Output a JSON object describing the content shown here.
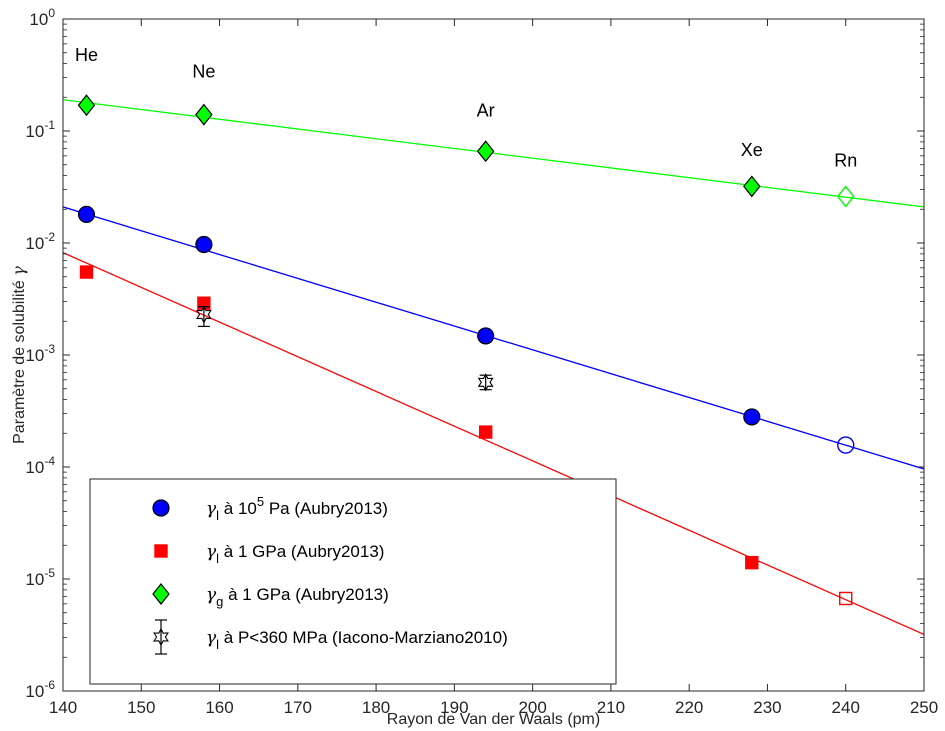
{
  "chart_data": {
    "type": "scatter",
    "x_axis": {
      "label": "Rayon de Van der Waals (pm)",
      "range": [
        140,
        250
      ],
      "ticks": [
        140,
        150,
        160,
        170,
        180,
        190,
        200,
        210,
        220,
        230,
        240,
        250
      ]
    },
    "y_axis": {
      "label": "Paramètre de solubilité γ",
      "scale": "log",
      "range": [
        1e-06,
        1
      ],
      "tick_labels": [
        {
          "base": "10",
          "exp": "-6"
        },
        {
          "base": "10",
          "exp": "-5"
        },
        {
          "base": "10",
          "exp": "-4"
        },
        {
          "base": "10",
          "exp": "-3"
        },
        {
          "base": "10",
          "exp": "-2"
        },
        {
          "base": "10",
          "exp": "-1"
        },
        {
          "base": "10",
          "exp": "0"
        }
      ]
    },
    "grid": false,
    "legend_position": "bottom-left",
    "element_labels": [
      {
        "text": "He",
        "x": 143,
        "y": 0.42
      },
      {
        "text": "Ne",
        "x": 158,
        "y": 0.3
      },
      {
        "text": "Ar",
        "x": 194,
        "y": 0.135
      },
      {
        "text": "Xe",
        "x": 228,
        "y": 0.06
      },
      {
        "text": "Rn",
        "x": 240,
        "y": 0.048
      }
    ],
    "series": [
      {
        "name": "γl à 10^5 Pa (Aubry2013)",
        "legend": {
          "sym": "γ",
          "sub": "l",
          "text": " à 10",
          "sup": "5",
          "rest": " Pa (Aubry2013)"
        },
        "marker": "circle",
        "color": "#0000ff",
        "points": [
          {
            "x": 143,
            "y": 0.018
          },
          {
            "x": 158,
            "y": 0.0097
          },
          {
            "x": 194,
            "y": 0.00148
          },
          {
            "x": 228,
            "y": 0.00028
          }
        ],
        "open_points": [
          {
            "x": 240,
            "y": 0.000157
          }
        ],
        "fit_line": {
          "x": [
            140,
            250
          ],
          "y": [
            0.021,
            9.6e-05
          ]
        }
      },
      {
        "name": "γl à 1 GPa (Aubry2013)",
        "legend": {
          "sym": "γ",
          "sub": "l",
          "text": " à 1 GPa (Aubry2013)",
          "sup": "",
          "rest": ""
        },
        "marker": "square",
        "color": "#ff0000",
        "points": [
          {
            "x": 143,
            "y": 0.0055
          },
          {
            "x": 158,
            "y": 0.0029
          },
          {
            "x": 194,
            "y": 0.000205
          },
          {
            "x": 228,
            "y": 1.4e-05
          }
        ],
        "open_points": [
          {
            "x": 240,
            "y": 6.7e-06
          }
        ],
        "fit_line": {
          "x": [
            140,
            250
          ],
          "y": [
            0.0082,
            3.2e-06
          ]
        }
      },
      {
        "name": "γg à 1 GPa (Aubry2013)",
        "legend": {
          "sym": "γ",
          "sub": "g",
          "text": " à 1 GPa (Aubry2013)",
          "sup": "",
          "rest": ""
        },
        "marker": "diamond",
        "color": "#00ff00",
        "points": [
          {
            "x": 143,
            "y": 0.17
          },
          {
            "x": 158,
            "y": 0.14
          },
          {
            "x": 194,
            "y": 0.066
          },
          {
            "x": 228,
            "y": 0.032
          }
        ],
        "open_points": [
          {
            "x": 240,
            "y": 0.026
          }
        ],
        "fit_line": {
          "x": [
            140,
            250
          ],
          "y": [
            0.19,
            0.021
          ]
        }
      },
      {
        "name": "γl à P<360 MPa (Iacono-Marziano2010)",
        "legend": {
          "sym": "γ",
          "sub": "l",
          "text": " à P<360 MPa (Iacono-Marziano2010)",
          "sup": "",
          "rest": ""
        },
        "marker": "star",
        "color": "#000000",
        "points": [
          {
            "x": 158,
            "y": 0.0023,
            "err_low": 0.0018,
            "err_high": 0.0027
          },
          {
            "x": 194,
            "y": 0.00057,
            "err_low": 0.00049,
            "err_high": 0.00066
          }
        ],
        "open_points": [],
        "fit_line": null
      }
    ]
  }
}
